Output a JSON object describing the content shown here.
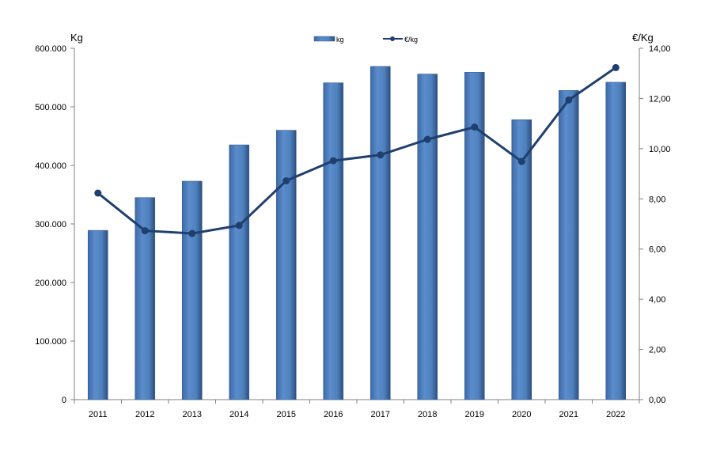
{
  "chart_data": {
    "type": "bar",
    "categories": [
      "2011",
      "2012",
      "2013",
      "2014",
      "2015",
      "2016",
      "2017",
      "2018",
      "2019",
      "2020",
      "2021",
      "2022"
    ],
    "series": [
      {
        "name": "kg",
        "type": "bar",
        "axis": "left",
        "color": "#4f81bd",
        "values": [
          289000,
          345000,
          373000,
          435000,
          460000,
          541000,
          569000,
          556000,
          559000,
          478000,
          528000,
          542000
        ]
      },
      {
        "name": "€/kg",
        "type": "line",
        "axis": "right",
        "color": "#1f3f6e",
        "values": [
          8.23,
          6.73,
          6.62,
          6.94,
          8.72,
          9.52,
          9.75,
          10.37,
          10.86,
          9.49,
          11.94,
          13.23
        ]
      }
    ],
    "ylabel_left": "Kg",
    "ylabel_right": "€/Kg",
    "ylim_left": [
      0,
      600000
    ],
    "ylim_right": [
      0,
      14
    ],
    "yticks_left": [
      "0",
      "100.000",
      "200.000",
      "300.000",
      "400.000",
      "500.000",
      "600.000"
    ],
    "yticks_right": [
      "0,00",
      "2,00",
      "4,00",
      "6,00",
      "8,00",
      "10,00",
      "12,00",
      "14,00"
    ],
    "grid": false,
    "legend_position": "top-center"
  }
}
